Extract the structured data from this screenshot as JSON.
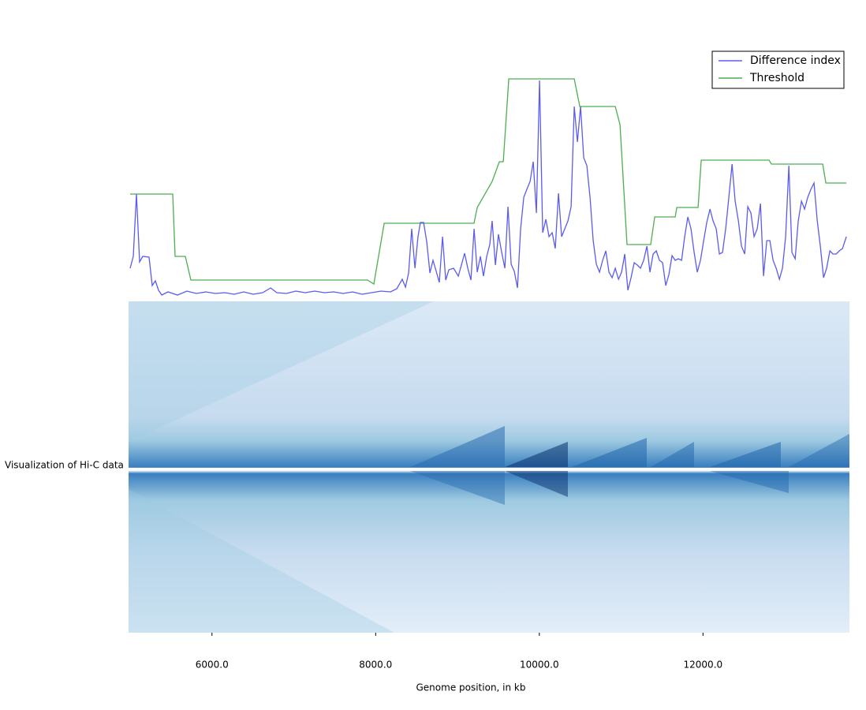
{
  "chart_data": {
    "type": "line",
    "x_label": "Genome position, in kb",
    "side_label": "Visualization of Hi-C data",
    "xlim": [
      5000,
      13770
    ],
    "ylim": [
      0,
      290
    ],
    "xticks": [
      {
        "value": 6000,
        "label": "6000.0"
      },
      {
        "value": 8000,
        "label": "8000.0"
      },
      {
        "value": 10000,
        "label": "10000.0"
      },
      {
        "value": 12000,
        "label": "12000.0"
      }
    ],
    "legend": "upper right",
    "series": [
      {
        "name": "Difference index",
        "color": "#5b5bf0",
        "x": [
          5000,
          5039,
          5077,
          5116,
          5154,
          5231,
          5270,
          5308,
          5347,
          5386,
          5463,
          5578,
          5694,
          5810,
          5925,
          6041,
          6157,
          6272,
          6388,
          6504,
          6619,
          6716,
          6793,
          6909,
          7024,
          7140,
          7256,
          7371,
          7487,
          7603,
          7718,
          7834,
          7950,
          8065,
          8181,
          8258,
          8325,
          8364,
          8403,
          8441,
          8480,
          8518,
          8547,
          8586,
          8624,
          8663,
          8701,
          8740,
          8778,
          8817,
          8856,
          8894,
          8952,
          9010,
          9087,
          9126,
          9164,
          9203,
          9241,
          9280,
          9318,
          9357,
          9395,
          9424,
          9463,
          9501,
          9540,
          9579,
          9617,
          9656,
          9694,
          9733,
          9771,
          9810,
          9848,
          9887,
          9926,
          9964,
          10003,
          10041,
          10080,
          10118,
          10157,
          10195,
          10234,
          10273,
          10311,
          10350,
          10388,
          10427,
          10465,
          10504,
          10542,
          10581,
          10620,
          10658,
          10697,
          10735,
          10774,
          10812,
          10851,
          10889,
          10928,
          10967,
          11005,
          11044,
          11082,
          11121,
          11159,
          11198,
          11236,
          11275,
          11314,
          11352,
          11391,
          11429,
          11468,
          11506,
          11545,
          11583,
          11622,
          11660,
          11699,
          11738,
          11776,
          11815,
          11853,
          11892,
          11930,
          11969,
          12008,
          12046,
          12085,
          12123,
          12162,
          12200,
          12239,
          12277,
          12316,
          12355,
          12393,
          12432,
          12470,
          12509,
          12547,
          12586,
          12624,
          12663,
          12702,
          12740,
          12779,
          12817,
          12856,
          12894,
          12933,
          12971,
          13010,
          13049,
          13087,
          13126,
          13164,
          13203,
          13241,
          13280,
          13318,
          13357,
          13396,
          13434,
          13473,
          13511,
          13550,
          13588,
          13627,
          13666,
          13704,
          13752
        ],
        "values": [
          38,
          53,
          132,
          46,
          53,
          52,
          16,
          22,
          10,
          4,
          8,
          4,
          9,
          6,
          8,
          6,
          7,
          5,
          8,
          5,
          7,
          13,
          7,
          6,
          9,
          7,
          9,
          7,
          8,
          6,
          8,
          5,
          7,
          9,
          8,
          12,
          24,
          14,
          32,
          88,
          38,
          78,
          96,
          96,
          72,
          32,
          48,
          34,
          20,
          78,
          23,
          36,
          38,
          28,
          57,
          38,
          23,
          88,
          33,
          53,
          28,
          53,
          68,
          98,
          42,
          81,
          58,
          38,
          116,
          43,
          34,
          13,
          88,
          128,
          138,
          148,
          173,
          108,
          276,
          83,
          100,
          78,
          83,
          63,
          133,
          78,
          88,
          98,
          116,
          243,
          198,
          243,
          178,
          168,
          128,
          73,
          43,
          33,
          48,
          60,
          33,
          26,
          38,
          24,
          33,
          56,
          10,
          26,
          45,
          42,
          38,
          48,
          66,
          33,
          56,
          60,
          48,
          45,
          16,
          30,
          54,
          48,
          50,
          48,
          78,
          103,
          88,
          58,
          33,
          48,
          73,
          96,
          113,
          98,
          88,
          56,
          58,
          88,
          128,
          170,
          123,
          98,
          66,
          56,
          116,
          108,
          78,
          88,
          120,
          28,
          73,
          73,
          48,
          38,
          24,
          38,
          78,
          168,
          58,
          50,
          98,
          123,
          113,
          128,
          138,
          146,
          98,
          66,
          26,
          38,
          60,
          56,
          56,
          60,
          63,
          78
        ]
      },
      {
        "name": "Threshold",
        "color": "#4caf50",
        "x": [
          5000,
          5520,
          5549,
          5675,
          5742,
          7901,
          7978,
          8104,
          9202,
          9241,
          9424,
          9511,
          9559,
          9627,
          10427,
          10494,
          10928,
          10986,
          11072,
          11361,
          11410,
          11660,
          11680,
          11940,
          11978,
          12807,
          12836,
          13463,
          13501,
          13752
        ],
        "values": [
          132,
          132,
          53,
          53,
          23,
          23,
          18,
          95,
          95,
          115,
          148,
          173,
          173,
          278,
          278,
          243,
          243,
          220,
          68,
          68,
          103,
          103,
          115,
          115,
          175,
          175,
          170,
          170,
          146,
          146
        ]
      }
    ]
  }
}
